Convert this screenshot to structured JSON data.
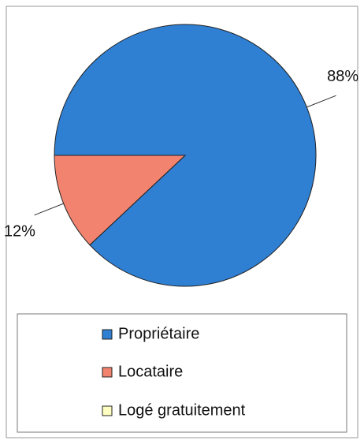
{
  "chart_data": {
    "type": "pie",
    "categories": [
      "Propriétaire",
      "Locataire",
      "Logé gratuitement"
    ],
    "values": [
      88,
      12,
      0
    ],
    "value_labels": [
      "88%",
      "12%",
      null
    ],
    "colors": [
      "#2f7fd3",
      "#f2836f",
      "#ffffc2"
    ],
    "legend": "bottom"
  }
}
